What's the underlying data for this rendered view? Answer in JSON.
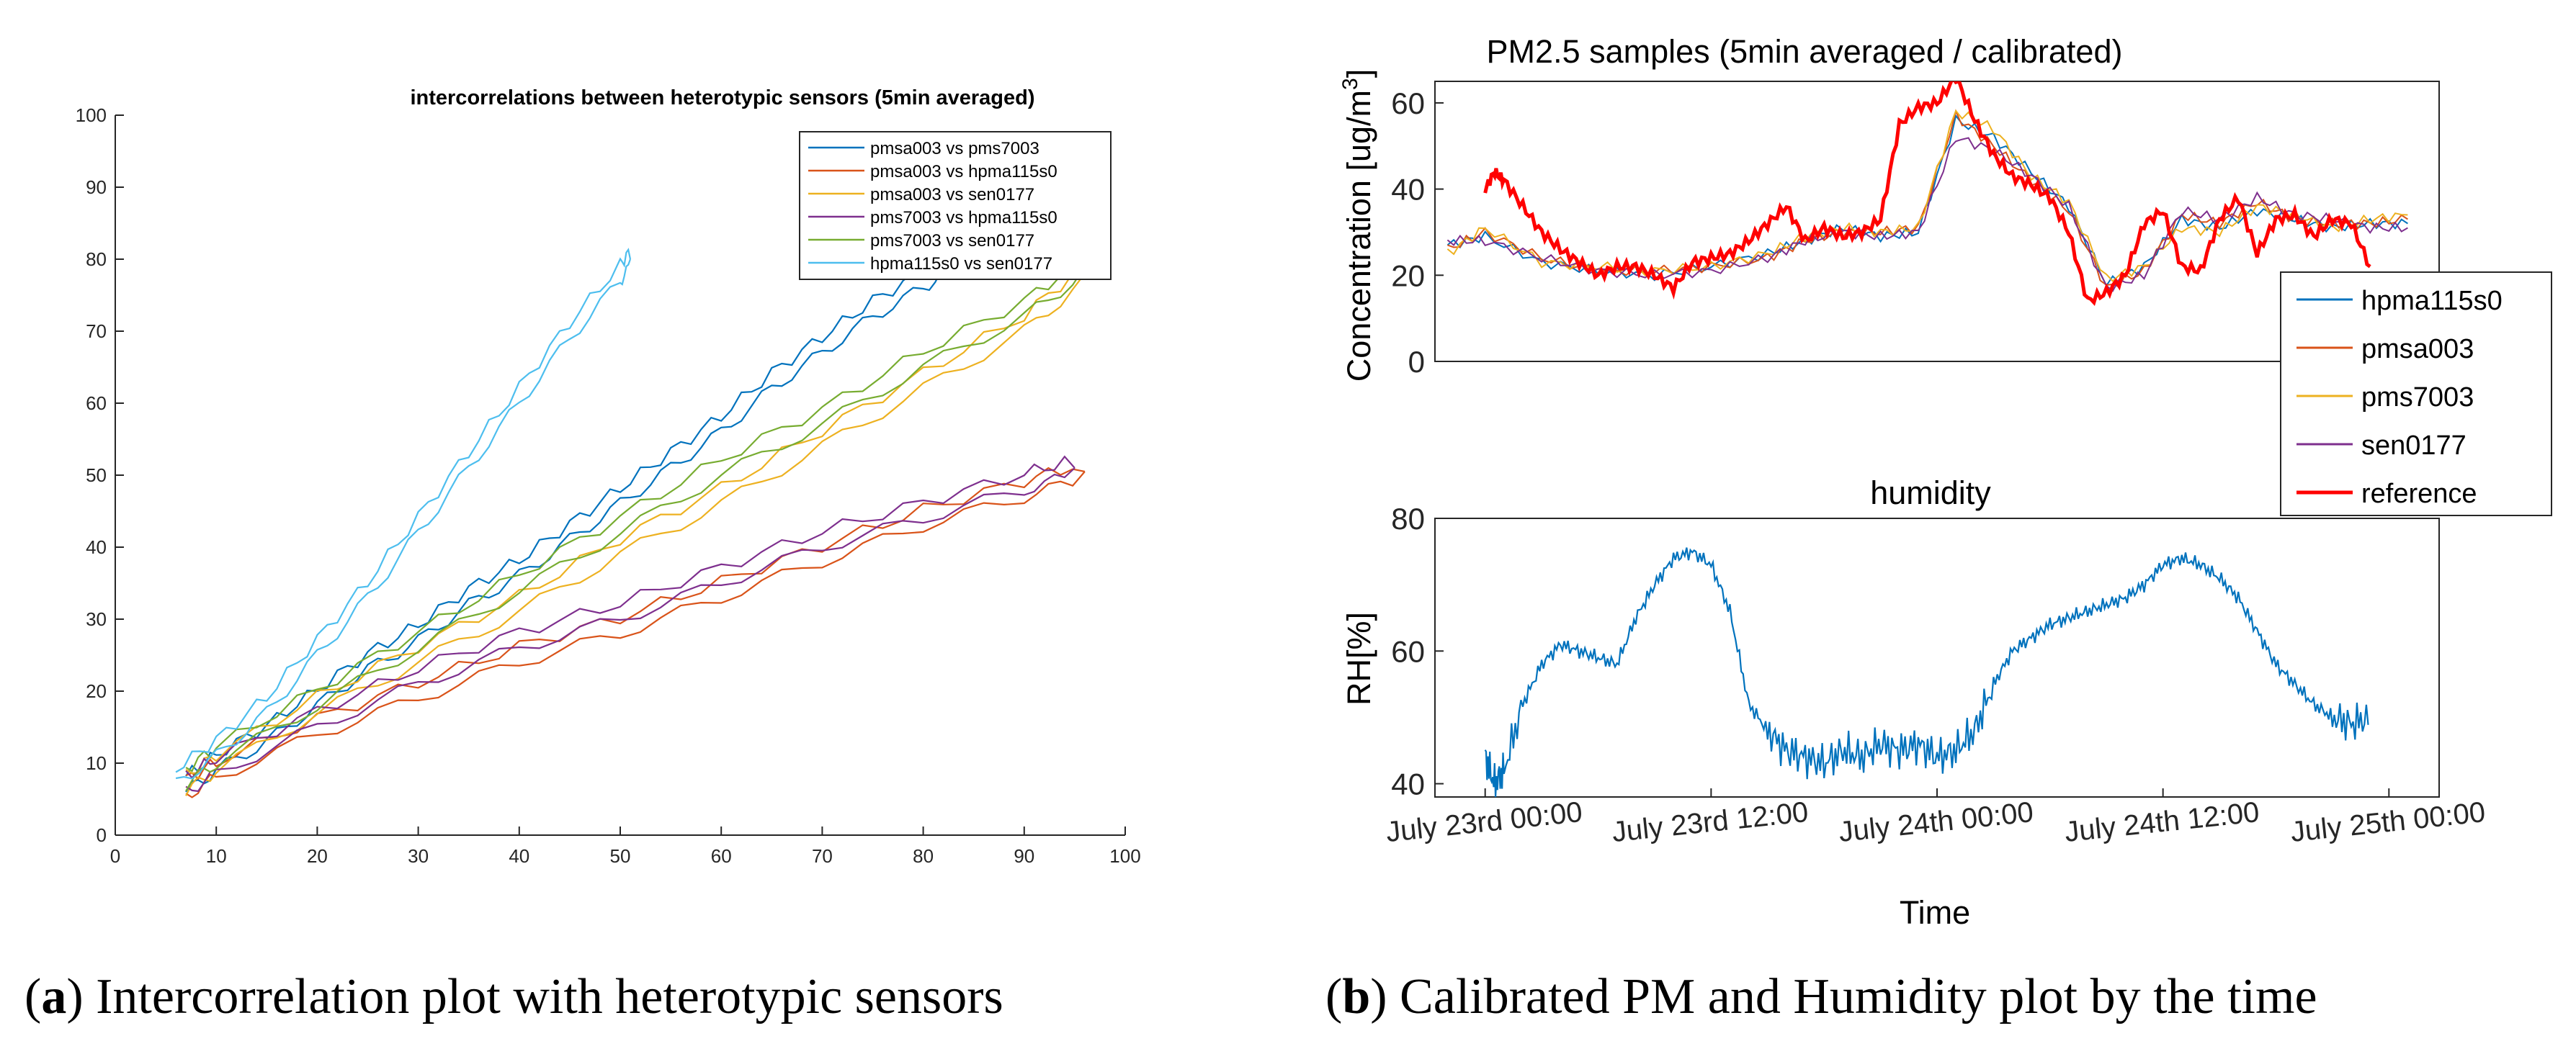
{
  "captions": {
    "a": {
      "letter": "a",
      "text": ") Intercorrelation plot with heterotypic sensors"
    },
    "b": {
      "letter": "b",
      "text": ") Calibrated PM and Humidity plot by the time"
    }
  },
  "chart_data": [
    {
      "id": "intercorrelation",
      "type": "line",
      "title": "intercorrelations between heterotypic sensors (5min averaged)",
      "xlabel": "",
      "ylabel": "",
      "xlim": [
        0,
        100
      ],
      "ylim": [
        0,
        100
      ],
      "xticks": [
        0,
        10,
        20,
        30,
        40,
        50,
        60,
        70,
        80,
        90,
        100
      ],
      "yticks": [
        0,
        10,
        20,
        30,
        40,
        50,
        60,
        70,
        80,
        90,
        100
      ],
      "grid": false,
      "legend_position": "top-right",
      "series": [
        {
          "name": "pmsa003 vs pms7003",
          "color": "#0072BD",
          "x": [
            7,
            10,
            15,
            20,
            25,
            30,
            35,
            40,
            45,
            50,
            55,
            60,
            65,
            70,
            75,
            80,
            83,
            86
          ],
          "y": [
            7,
            10,
            14,
            19,
            24,
            28,
            33,
            37,
            42,
            47,
            52,
            57,
            63,
            68,
            73,
            77,
            80,
            82
          ]
        },
        {
          "name": "pmsa003 vs hpma115s0",
          "color": "#D95319",
          "x": [
            7,
            10,
            20,
            30,
            40,
            50,
            60,
            70,
            80,
            90,
            96
          ],
          "y": [
            6.5,
            9,
            15,
            20,
            25,
            29,
            34,
            39,
            44,
            48,
            50.5
          ]
        },
        {
          "name": "pmsa003 vs sen0177",
          "color": "#EDB120",
          "x": [
            7,
            10,
            20,
            30,
            40,
            50,
            60,
            70,
            80,
            90,
            96
          ],
          "y": [
            7,
            10,
            18,
            25,
            32,
            40,
            47,
            55,
            63,
            71,
            78
          ]
        },
        {
          "name": "pms7003 vs hpma115s0",
          "color": "#7E2F8E",
          "x": [
            7,
            10,
            20,
            30,
            40,
            50,
            60,
            70,
            80,
            90,
            95
          ],
          "y": [
            7,
            9.5,
            16,
            22,
            27,
            31,
            36,
            41,
            45,
            49,
            51
          ]
        },
        {
          "name": "pms7003 vs sen0177",
          "color": "#77AC30",
          "x": [
            7,
            10,
            20,
            30,
            40,
            50,
            60,
            70,
            80,
            90,
            96
          ],
          "y": [
            8,
            11,
            19,
            27,
            35,
            43,
            51,
            58,
            66,
            73,
            79
          ]
        },
        {
          "name": "hpma115s0 vs sen0177",
          "color": "#4DBEEE",
          "x": [
            6,
            10,
            15,
            20,
            25,
            30,
            35,
            40,
            45,
            50,
            51
          ],
          "y": [
            8,
            12,
            18,
            26,
            34,
            43,
            52,
            61,
            70,
            78,
            80
          ]
        }
      ]
    },
    {
      "id": "pm25",
      "type": "line",
      "title": "PM2.5 samples (5min averaged / calibrated)",
      "xlabel": "",
      "ylabel": "Concentration [ug/m",
      "ylabel_superscript": "3",
      "ylabel_suffix": "]",
      "xlim_hours": [
        0,
        48
      ],
      "ylim": [
        0,
        65
      ],
      "yticks": [
        0,
        20,
        40,
        60
      ],
      "grid": false,
      "legend_position": "right",
      "series": [
        {
          "name": "hpma115s0",
          "color": "#0072BD",
          "stroke": 2,
          "x_hours": [
            -2,
            0,
            3,
            6,
            9,
            12,
            15,
            17,
            19,
            21,
            23,
            25,
            27,
            29,
            31,
            33,
            35,
            37,
            39,
            41,
            43,
            45,
            47,
            49
          ],
          "y": [
            27,
            29,
            23,
            21,
            20,
            22,
            25,
            28,
            31,
            29,
            30,
            56,
            52,
            44,
            36,
            18,
            22,
            33,
            31,
            35,
            33,
            31,
            32,
            32
          ]
        },
        {
          "name": "pmsa003",
          "color": "#D95319",
          "stroke": 2,
          "x_hours": [
            -2,
            0,
            3,
            6,
            9,
            12,
            15,
            17,
            19,
            21,
            23,
            25,
            27,
            29,
            31,
            33,
            35,
            37,
            39,
            41,
            43,
            45,
            47,
            49
          ],
          "y": [
            26,
            30,
            24,
            21,
            21,
            22,
            24,
            28,
            30,
            30,
            31,
            57,
            50,
            42,
            35,
            17,
            21,
            34,
            32,
            37,
            33,
            32,
            32,
            33
          ]
        },
        {
          "name": "pms7003",
          "color": "#EDB120",
          "stroke": 2,
          "x_hours": [
            -2,
            0,
            3,
            6,
            9,
            12,
            15,
            17,
            19,
            21,
            23,
            25,
            27,
            29,
            31,
            33,
            35,
            37,
            39,
            41,
            43,
            45,
            47,
            49
          ],
          "y": [
            25,
            31,
            23,
            22,
            21,
            22,
            25,
            29,
            31,
            30,
            31,
            58,
            54,
            43,
            37,
            19,
            22,
            31,
            30,
            36,
            34,
            31,
            33,
            34
          ]
        },
        {
          "name": "sen0177",
          "color": "#7E2F8E",
          "stroke": 2,
          "x_hours": [
            -2,
            0,
            3,
            6,
            9,
            12,
            15,
            17,
            19,
            21,
            23,
            25,
            27,
            29,
            31,
            33,
            35,
            37,
            39,
            41,
            43,
            45,
            47,
            49
          ],
          "y": [
            28,
            28,
            24,
            21,
            20,
            21,
            24,
            28,
            30,
            29,
            30,
            52,
            49,
            43,
            36,
            17,
            20,
            35,
            33,
            38,
            34,
            33,
            31,
            31
          ]
        },
        {
          "name": "reference",
          "color": "#FF0000",
          "stroke": 5,
          "x_hours": [
            0,
            0.5,
            1,
            2,
            3,
            4,
            5,
            6,
            7,
            8,
            9,
            10,
            11,
            12,
            13,
            14,
            15,
            16,
            17,
            18,
            19,
            20,
            21,
            22,
            23,
            24,
            25,
            26,
            27,
            28,
            29,
            30,
            31,
            32,
            33,
            34,
            35,
            36,
            37,
            38,
            39,
            40,
            41,
            42,
            43,
            44,
            45,
            46,
            47
          ],
          "y": [
            40,
            44,
            42,
            36,
            30,
            26,
            23,
            20,
            22,
            22,
            20,
            17,
            23,
            24,
            25,
            28,
            32,
            36,
            28,
            31,
            29,
            30,
            33,
            55,
            59,
            60,
            66,
            56,
            48,
            43,
            41,
            38,
            30,
            14,
            16,
            20,
            32,
            35,
            22,
            21,
            33,
            38,
            25,
            33,
            34,
            29,
            33,
            32,
            22
          ]
        }
      ]
    },
    {
      "id": "humidity",
      "type": "line",
      "title": "humidity",
      "xlabel": "Time",
      "ylabel": "RH[%]",
      "xlim_hours": [
        0,
        48
      ],
      "ylim": [
        38,
        80
      ],
      "yticks": [
        40,
        60,
        80
      ],
      "xtick_labels": [
        "July 23rd 00:00",
        "July 23rd 12:00",
        "July 24th 00:00",
        "July 24th 12:00",
        "July 25th 00:00"
      ],
      "xtick_hours": [
        0,
        12,
        24,
        36,
        48
      ],
      "grid": false,
      "series": [
        {
          "name": "humidity",
          "color": "#0072BD",
          "x_hours": [
            0,
            0.5,
            1,
            2,
            3,
            4,
            5,
            6,
            7,
            8,
            9,
            10,
            11,
            12,
            13,
            14,
            15,
            16,
            17,
            18,
            19,
            20,
            21,
            22,
            23,
            24,
            25,
            26,
            27,
            28,
            29,
            30,
            31,
            32,
            33,
            34,
            35,
            36,
            37,
            38,
            39,
            40,
            41,
            42,
            43,
            44,
            45,
            46,
            47
          ],
          "y": [
            44,
            40,
            42,
            52,
            58,
            61,
            60,
            59,
            58,
            65,
            70,
            74,
            75,
            73,
            66,
            52,
            48,
            45,
            44,
            43,
            45,
            44,
            46,
            45,
            46,
            44,
            45,
            48,
            55,
            60,
            62,
            64,
            65,
            66,
            67,
            68,
            70,
            73,
            74,
            73,
            71,
            68,
            63,
            58,
            55,
            52,
            50,
            49,
            50
          ]
        }
      ]
    }
  ]
}
